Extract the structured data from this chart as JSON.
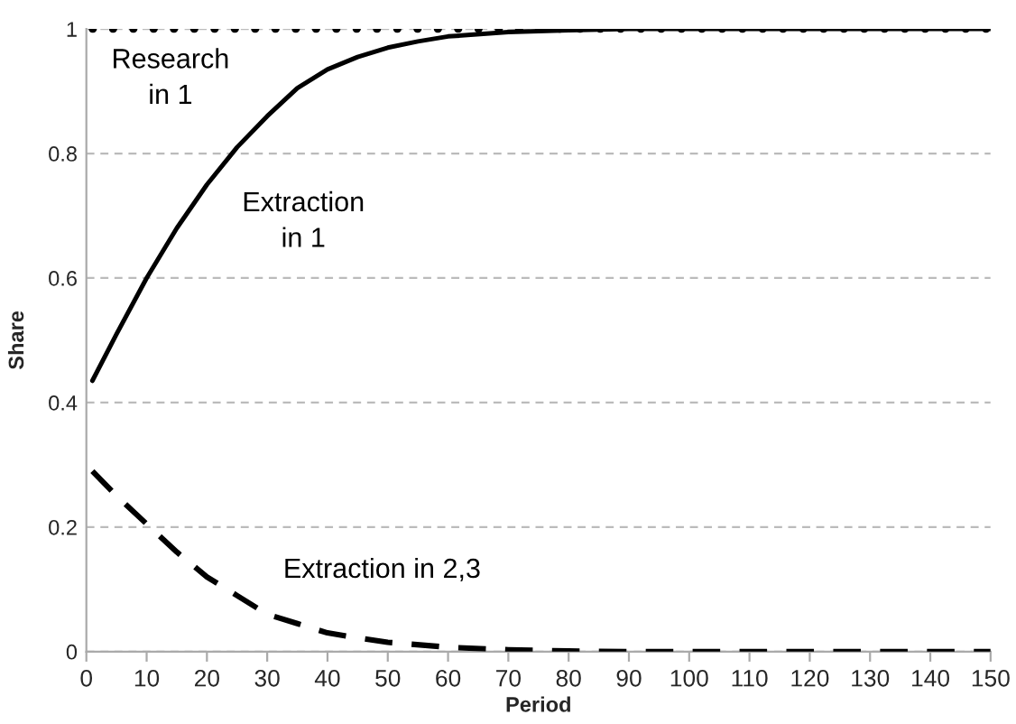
{
  "chart_data": {
    "type": "line",
    "xlabel": "Period",
    "ylabel": "Share",
    "xlim": [
      0,
      150
    ],
    "xticks": [
      0,
      10,
      20,
      30,
      40,
      50,
      60,
      70,
      80,
      90,
      100,
      110,
      120,
      130,
      140,
      150
    ],
    "ylim": [
      0,
      1
    ],
    "yticks": [
      0,
      0.2,
      0.4,
      0.6,
      0.8,
      1
    ],
    "grid": "y",
    "series": [
      {
        "name": "Research\nin 1",
        "color": "#000000",
        "line_style": "dotted",
        "x": [
          1,
          150
        ],
        "values": [
          1,
          1
        ]
      },
      {
        "name": "Extraction\nin 1",
        "color": "#000000",
        "line_style": "solid",
        "x": [
          1,
          5,
          10,
          15,
          20,
          25,
          30,
          35,
          40,
          45,
          50,
          55,
          60,
          70,
          80,
          90,
          150
        ],
        "values": [
          0.435,
          0.51,
          0.6,
          0.68,
          0.75,
          0.81,
          0.86,
          0.905,
          0.935,
          0.955,
          0.97,
          0.98,
          0.988,
          0.995,
          0.998,
          1,
          1
        ]
      },
      {
        "name": "Extraction in 2,3",
        "color": "#000000",
        "line_style": "dashed",
        "x": [
          1,
          5,
          10,
          15,
          20,
          25,
          30,
          35,
          40,
          45,
          50,
          60,
          70,
          80,
          90,
          150
        ],
        "values": [
          0.29,
          0.25,
          0.205,
          0.16,
          0.12,
          0.09,
          0.06,
          0.045,
          0.03,
          0.022,
          0.015,
          0.007,
          0.003,
          0.001,
          0,
          0
        ]
      }
    ]
  }
}
